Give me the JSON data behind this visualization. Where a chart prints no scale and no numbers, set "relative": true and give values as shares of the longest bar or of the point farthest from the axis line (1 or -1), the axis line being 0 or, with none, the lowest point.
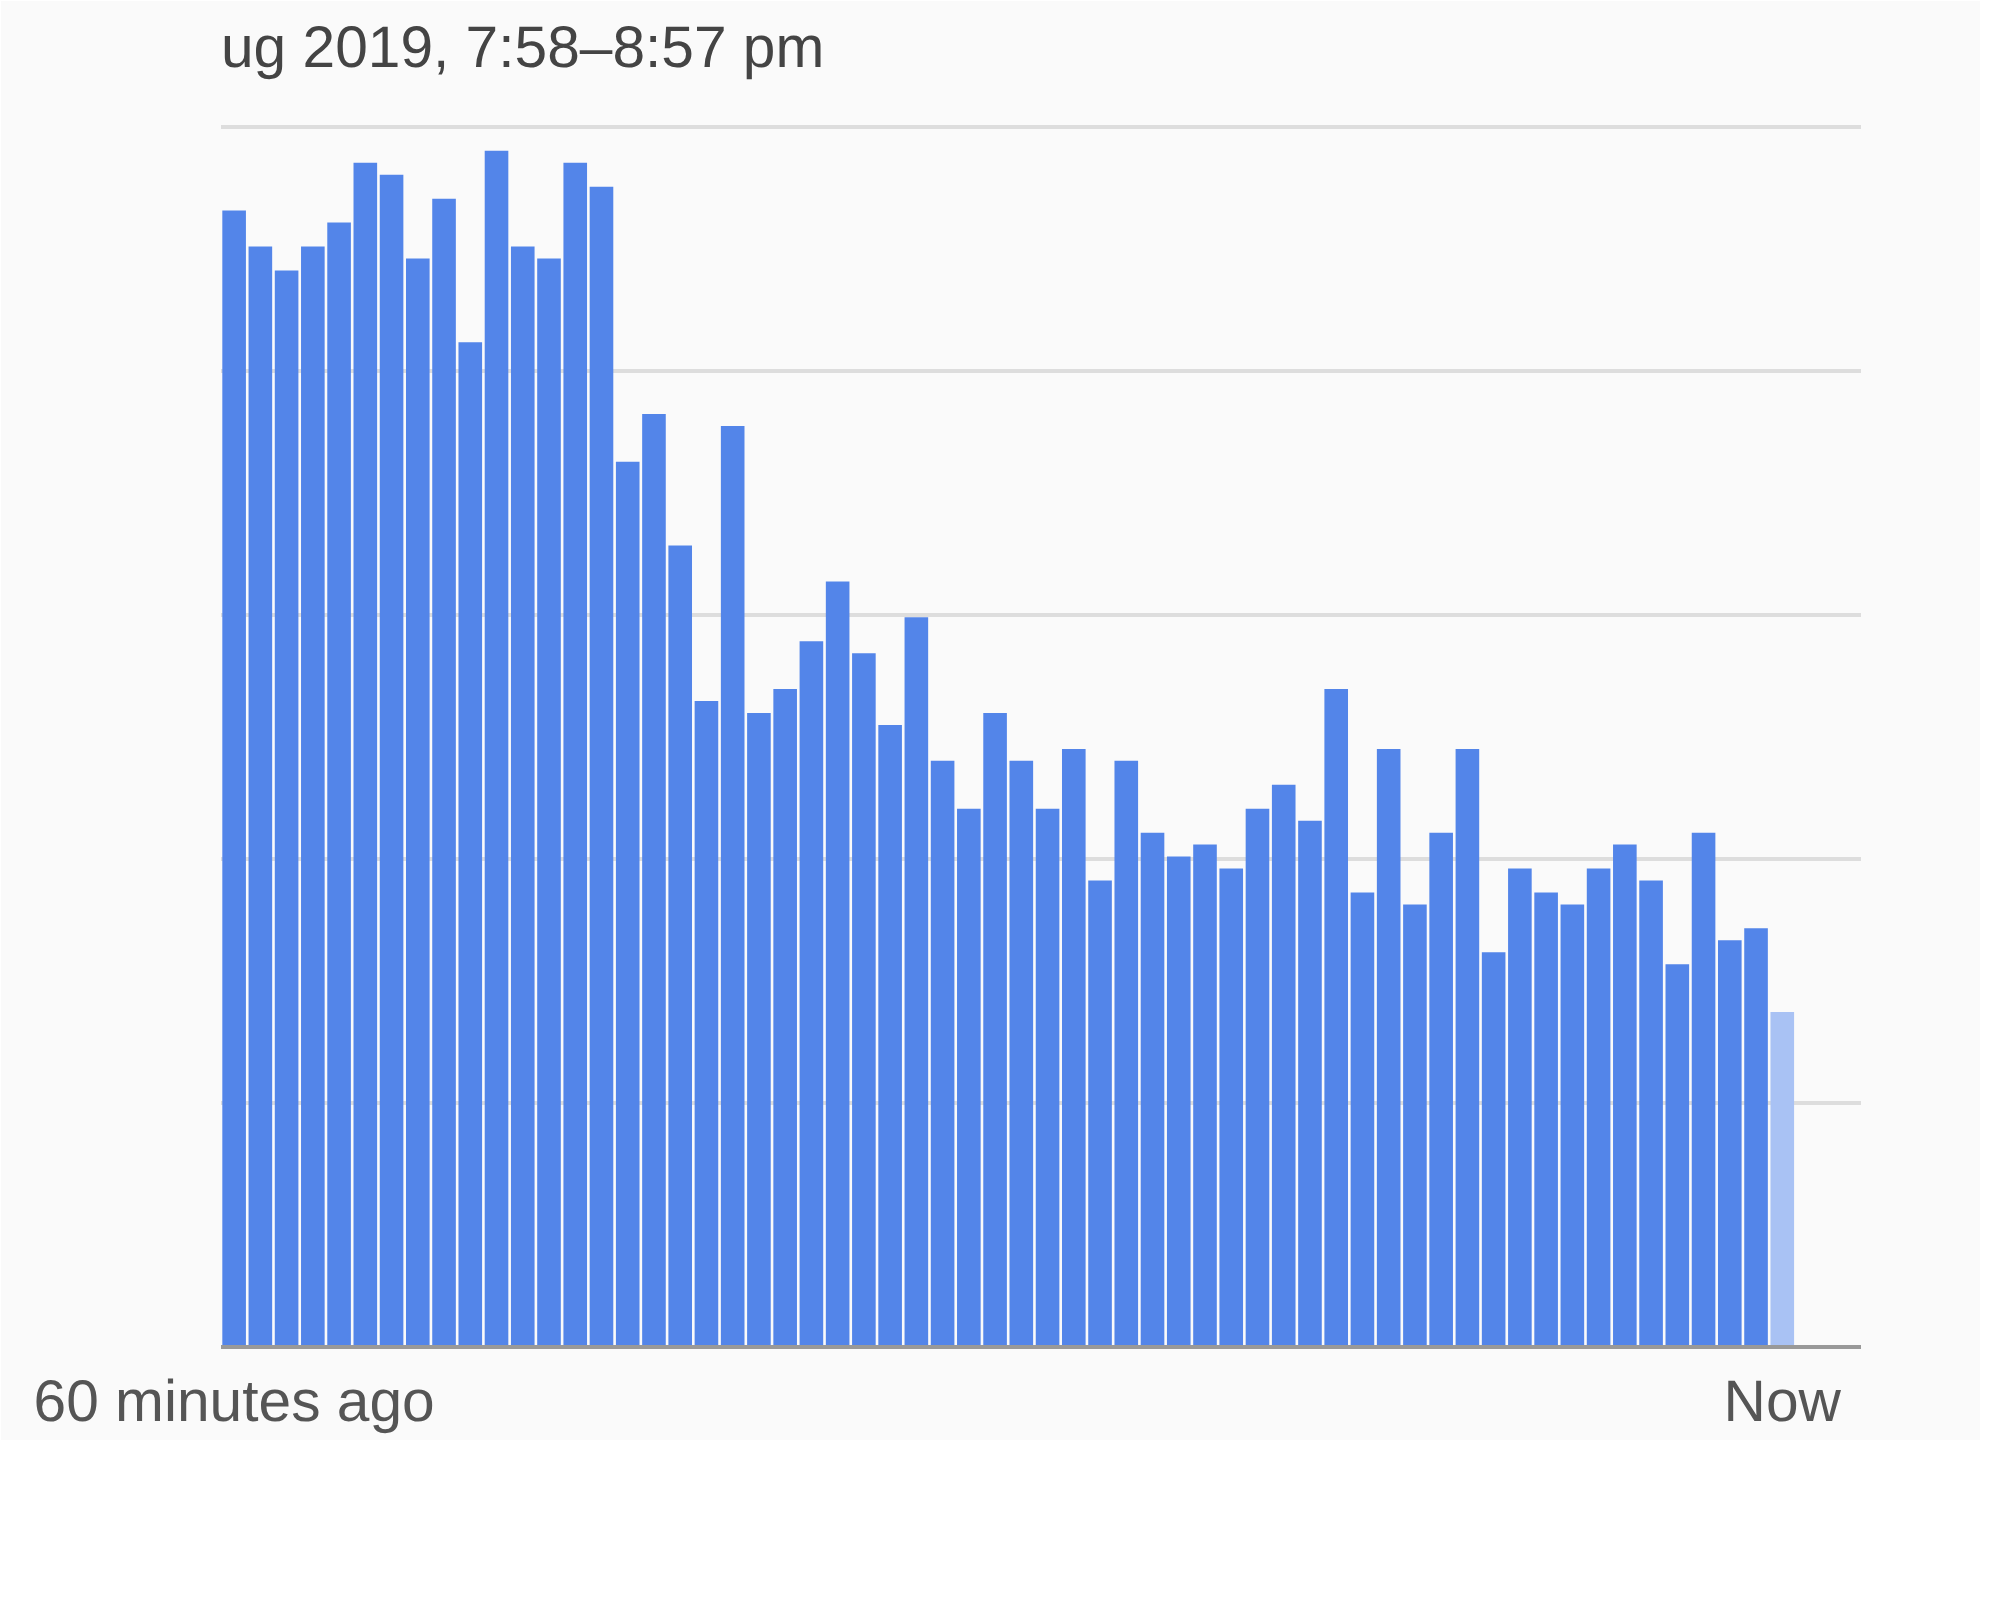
{
  "chart_data": {
    "type": "bar",
    "title": "ug 2019, 7:58–8:57 pm",
    "relative": true,
    "grid": "y",
    "categories": [
      "60 minutes ago",
      null,
      null,
      null,
      null,
      null,
      null,
      null,
      null,
      null,
      null,
      null,
      null,
      null,
      null,
      null,
      null,
      null,
      null,
      null,
      null,
      null,
      null,
      null,
      null,
      null,
      null,
      null,
      null,
      null,
      null,
      null,
      null,
      null,
      null,
      null,
      null,
      null,
      null,
      null,
      null,
      null,
      null,
      null,
      null,
      null,
      null,
      null,
      null,
      null,
      null,
      null,
      null,
      null,
      null,
      null,
      null,
      null,
      null,
      "Now"
    ],
    "values": [
      0.95,
      0.92,
      0.9,
      0.92,
      0.94,
      0.99,
      0.98,
      0.91,
      0.96,
      0.84,
      1,
      0.92,
      0.91,
      0.99,
      0.97,
      0.74,
      0.78,
      0.67,
      0.54,
      0.77,
      0.53,
      0.55,
      0.59,
      0.64,
      0.58,
      0.52,
      0.61,
      0.49,
      0.45,
      0.53,
      0.49,
      0.45,
      0.5,
      0.39,
      0.49,
      0.43,
      0.41,
      0.42,
      0.4,
      0.45,
      0.47,
      0.44,
      0.55,
      0.38,
      0.5,
      0.37,
      0.43,
      0.5,
      0.33,
      0.4,
      0.38,
      0.37,
      0.4,
      0.42,
      0.39,
      0.32,
      0.43,
      0.34,
      0.35,
      0.28
    ],
    "colors": [
      "#5385e9",
      "#5385e9",
      "#5385e9",
      "#5385e9",
      "#5385e9",
      "#5385e9",
      "#5385e9",
      "#5385e9",
      "#5385e9",
      "#5385e9",
      "#5385e9",
      "#5385e9",
      "#5385e9",
      "#5385e9",
      "#5385e9",
      "#5385e9",
      "#5385e9",
      "#5385e9",
      "#5385e9",
      "#5385e9",
      "#5385e9",
      "#5385e9",
      "#5385e9",
      "#5385e9",
      "#5385e9",
      "#5385e9",
      "#5385e9",
      "#5385e9",
      "#5385e9",
      "#5385e9",
      "#5385e9",
      "#5385e9",
      "#5385e9",
      "#5385e9",
      "#5385e9",
      "#5385e9",
      "#5385e9",
      "#5385e9",
      "#5385e9",
      "#5385e9",
      "#5385e9",
      "#5385e9",
      "#5385e9",
      "#5385e9",
      "#5385e9",
      "#5385e9",
      "#5385e9",
      "#5385e9",
      "#5385e9",
      "#5385e9",
      "#5385e9",
      "#5385e9",
      "#5385e9",
      "#5385e9",
      "#5385e9",
      "#5385e9",
      "#5385e9",
      "#5385e9",
      "#5385e9",
      "#a9c2f4"
    ]
  }
}
